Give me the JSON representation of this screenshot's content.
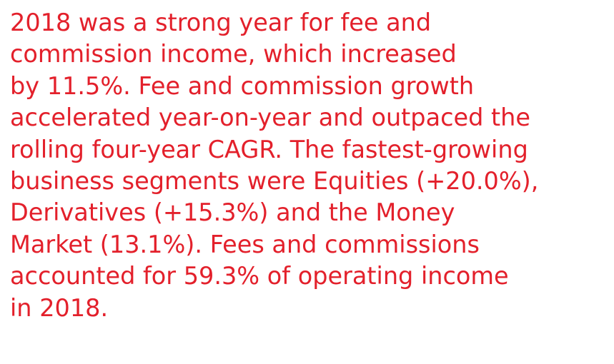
{
  "paragraph": {
    "lines": [
      "2018 was a strong year for fee and",
      "commission income, which increased",
      "by 11.5%. Fee and commission growth",
      "accelerated year-on-year and outpaced the",
      "rolling four-year CAGR. The fastest-growing",
      "business segments were Equities (+20.0%),",
      "Derivatives (+15.3%) and the Money",
      "Market (13.1%). Fees and commissions",
      "accounted for 59.3% of operating income",
      "in 2018."
    ]
  }
}
